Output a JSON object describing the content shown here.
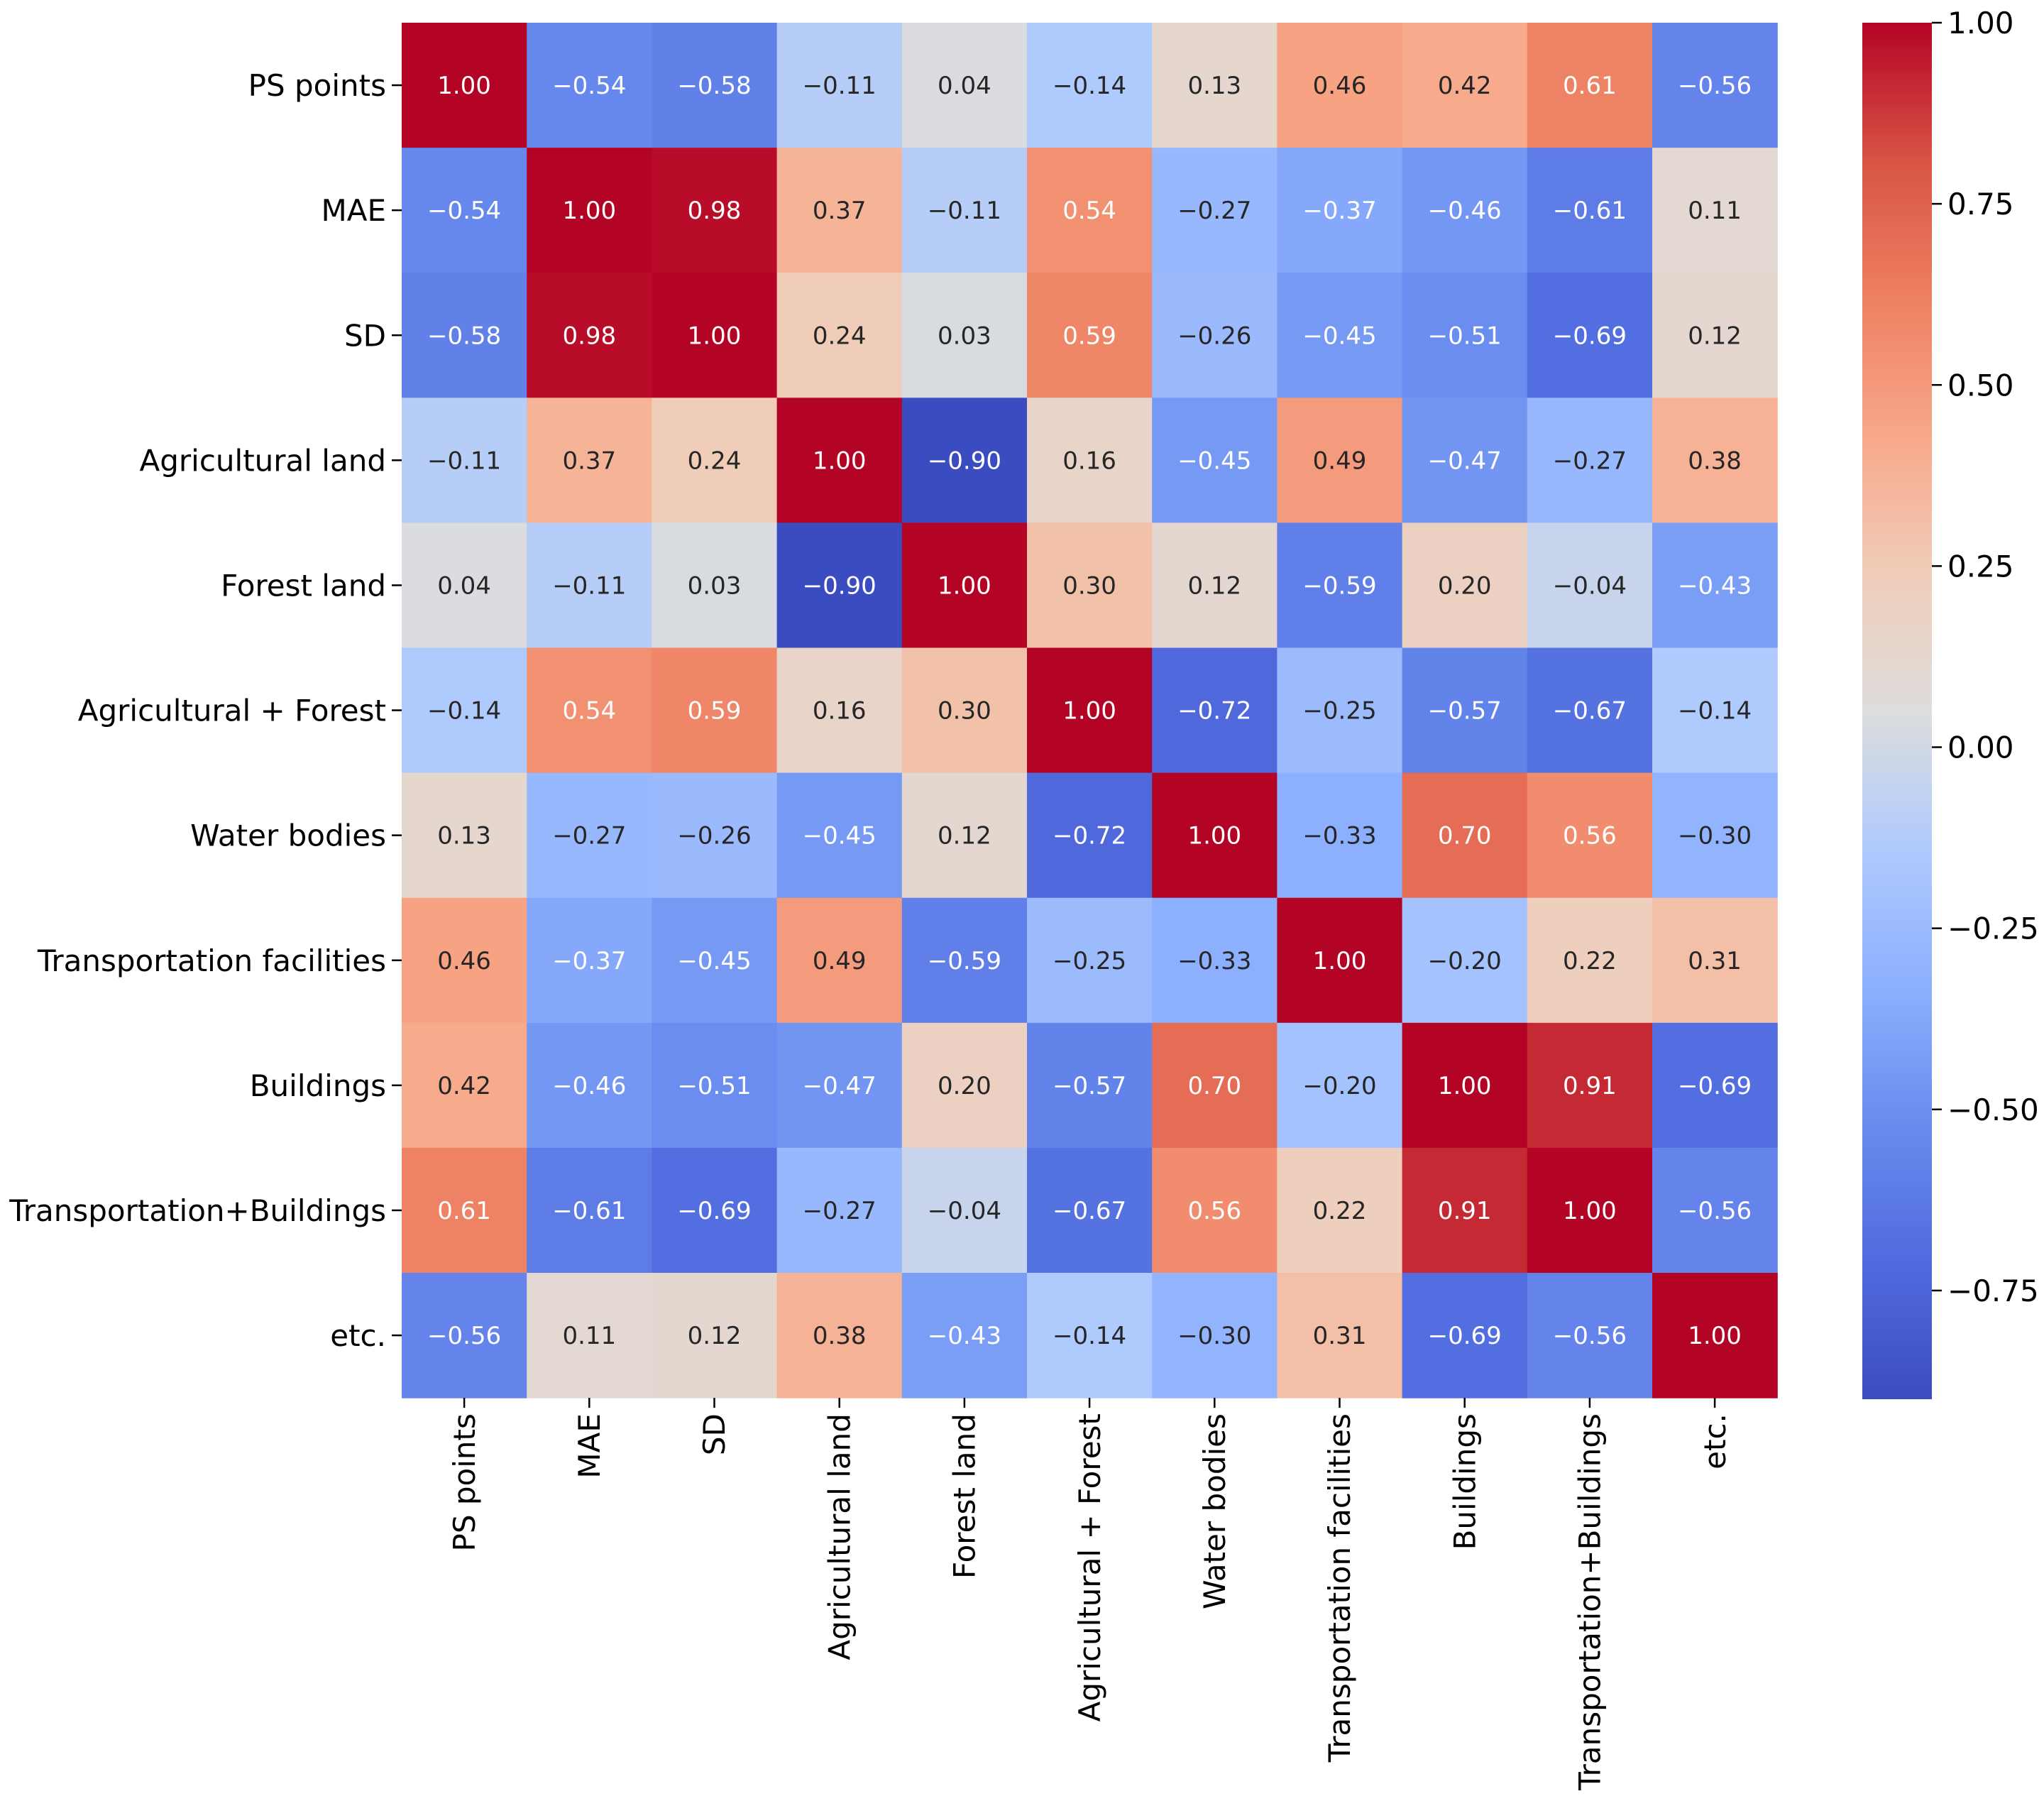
{
  "chart_data": {
    "type": "heatmap",
    "title": "",
    "xlabel": "",
    "ylabel": "",
    "row_labels": [
      "PS points",
      "MAE",
      "SD",
      "Agricultural land",
      "Forest land",
      "Agricultural + Forest",
      "Water bodies",
      "Transportation facilities",
      "Buildings",
      "Transportation+Buildings",
      "etc."
    ],
    "col_labels": [
      "PS points",
      "MAE",
      "SD",
      "Agricultural land",
      "Forest land",
      "Agricultural + Forest",
      "Water bodies",
      "Transportation facilities",
      "Buildings",
      "Transportation+Buildings",
      "etc."
    ],
    "values": [
      [
        1.0,
        -0.54,
        -0.58,
        -0.11,
        0.04,
        -0.14,
        0.13,
        0.46,
        0.42,
        0.61,
        -0.56
      ],
      [
        -0.54,
        1.0,
        0.98,
        0.37,
        -0.11,
        0.54,
        -0.27,
        -0.37,
        -0.46,
        -0.61,
        0.11
      ],
      [
        -0.58,
        0.98,
        1.0,
        0.24,
        0.03,
        0.59,
        -0.26,
        -0.45,
        -0.51,
        -0.69,
        0.12
      ],
      [
        -0.11,
        0.37,
        0.24,
        1.0,
        -0.9,
        0.16,
        -0.45,
        0.49,
        -0.47,
        -0.27,
        0.38
      ],
      [
        0.04,
        -0.11,
        0.03,
        -0.9,
        1.0,
        0.3,
        0.12,
        -0.59,
        0.2,
        -0.04,
        -0.43
      ],
      [
        -0.14,
        0.54,
        0.59,
        0.16,
        0.3,
        1.0,
        -0.72,
        -0.25,
        -0.57,
        -0.67,
        -0.14
      ],
      [
        0.13,
        -0.27,
        -0.26,
        -0.45,
        0.12,
        -0.72,
        1.0,
        -0.33,
        0.7,
        0.56,
        -0.3
      ],
      [
        0.46,
        -0.37,
        -0.45,
        0.49,
        -0.59,
        -0.25,
        -0.33,
        1.0,
        -0.2,
        0.22,
        0.31
      ],
      [
        0.42,
        -0.46,
        -0.51,
        -0.47,
        0.2,
        -0.57,
        0.7,
        -0.2,
        1.0,
        0.91,
        -0.69
      ],
      [
        0.61,
        -0.61,
        -0.69,
        -0.27,
        -0.04,
        -0.67,
        0.56,
        0.22,
        0.91,
        1.0,
        -0.56
      ],
      [
        -0.56,
        0.11,
        0.12,
        0.38,
        -0.43,
        -0.14,
        -0.3,
        0.31,
        -0.69,
        -0.56,
        1.0
      ]
    ],
    "value_format": "2 decimals, unicode minus",
    "colormap": "coolwarm",
    "colorbar": {
      "vmin": -0.9,
      "vmax": 1.0,
      "ticks": [
        1.0,
        0.75,
        0.5,
        0.25,
        0.0,
        -0.25,
        -0.5,
        -0.75
      ],
      "tick_labels": [
        "1.00",
        "0.75",
        "0.50",
        "0.25",
        "0.00",
        "−0.25",
        "−0.50",
        "−0.75"
      ],
      "placement": "right"
    }
  }
}
